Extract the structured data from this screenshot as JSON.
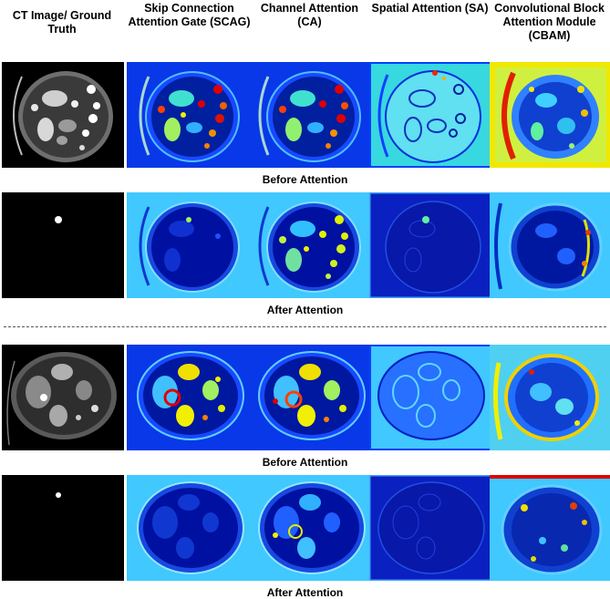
{
  "headers": {
    "ct": "CT Image/ Ground Truth",
    "scag": "Skip Connection Attention Gate (SCAG)",
    "ca": "Channel Attention (CA)",
    "sa": "Spatial Attention (SA)",
    "cbam": "Convolutional Block Attention Module (CBAM)"
  },
  "captions": {
    "before_1": "Before Attention",
    "after_1": "After Attention",
    "before_2": "Before Attention",
    "after_2": "After Attention"
  },
  "colors": {
    "jet_dark": "#00008f",
    "jet_blue": "#0030ff",
    "jet_cyan": "#40c8ff",
    "jet_yellow": "#f2f000",
    "jet_red": "#e00000"
  }
}
